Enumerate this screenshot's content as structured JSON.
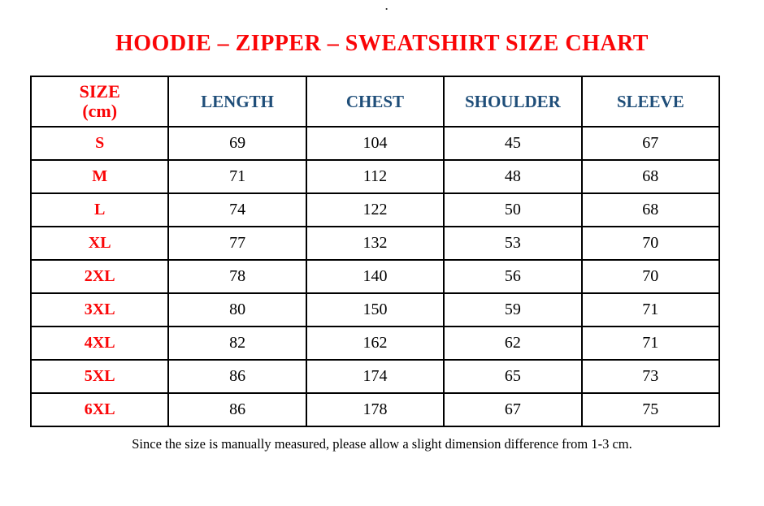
{
  "page": {
    "top_dot": "."
  },
  "title": {
    "text": "HOODIE – ZIPPER – SWEATSHIRT SIZE CHART"
  },
  "colors": {
    "accent_red": "#fa0507",
    "header_blue": "#1f4e79",
    "text_black": "#000000",
    "border": "#000000",
    "background": "#ffffff"
  },
  "table": {
    "header": {
      "size_label": "SIZE",
      "size_unit": "(cm)",
      "columns": [
        "LENGTH",
        "CHEST",
        "SHOULDER",
        "SLEEVE"
      ]
    },
    "rows": [
      {
        "size": "S",
        "length": 69,
        "chest": 104,
        "shoulder": 45,
        "sleeve": 67
      },
      {
        "size": "M",
        "length": 71,
        "chest": 112,
        "shoulder": 48,
        "sleeve": 68
      },
      {
        "size": "L",
        "length": 74,
        "chest": 122,
        "shoulder": 50,
        "sleeve": 68
      },
      {
        "size": "XL",
        "length": 77,
        "chest": 132,
        "shoulder": 53,
        "sleeve": 70
      },
      {
        "size": "2XL",
        "length": 78,
        "chest": 140,
        "shoulder": 56,
        "sleeve": 70
      },
      {
        "size": "3XL",
        "length": 80,
        "chest": 150,
        "shoulder": 59,
        "sleeve": 71
      },
      {
        "size": "4XL",
        "length": 82,
        "chest": 162,
        "shoulder": 62,
        "sleeve": 71
      },
      {
        "size": "5XL",
        "length": 86,
        "chest": 174,
        "shoulder": 65,
        "sleeve": 73
      },
      {
        "size": "6XL",
        "length": 86,
        "chest": 178,
        "shoulder": 67,
        "sleeve": 75
      }
    ]
  },
  "chart_data": {
    "type": "table",
    "title": "HOODIE – ZIPPER – SWEATSHIRT SIZE CHART",
    "columns": [
      "SIZE (cm)",
      "LENGTH",
      "CHEST",
      "SHOULDER",
      "SLEEVE"
    ],
    "rows": [
      [
        "S",
        69,
        104,
        45,
        67
      ],
      [
        "M",
        71,
        112,
        48,
        68
      ],
      [
        "L",
        74,
        122,
        50,
        68
      ],
      [
        "XL",
        77,
        132,
        53,
        70
      ],
      [
        "2XL",
        78,
        140,
        56,
        70
      ],
      [
        "3XL",
        80,
        150,
        59,
        71
      ],
      [
        "4XL",
        82,
        162,
        62,
        71
      ],
      [
        "5XL",
        86,
        174,
        65,
        73
      ],
      [
        "6XL",
        86,
        178,
        67,
        75
      ]
    ]
  },
  "footer": {
    "note": "Since the size is manually measured, please allow a slight dimension difference from 1-3 cm."
  }
}
